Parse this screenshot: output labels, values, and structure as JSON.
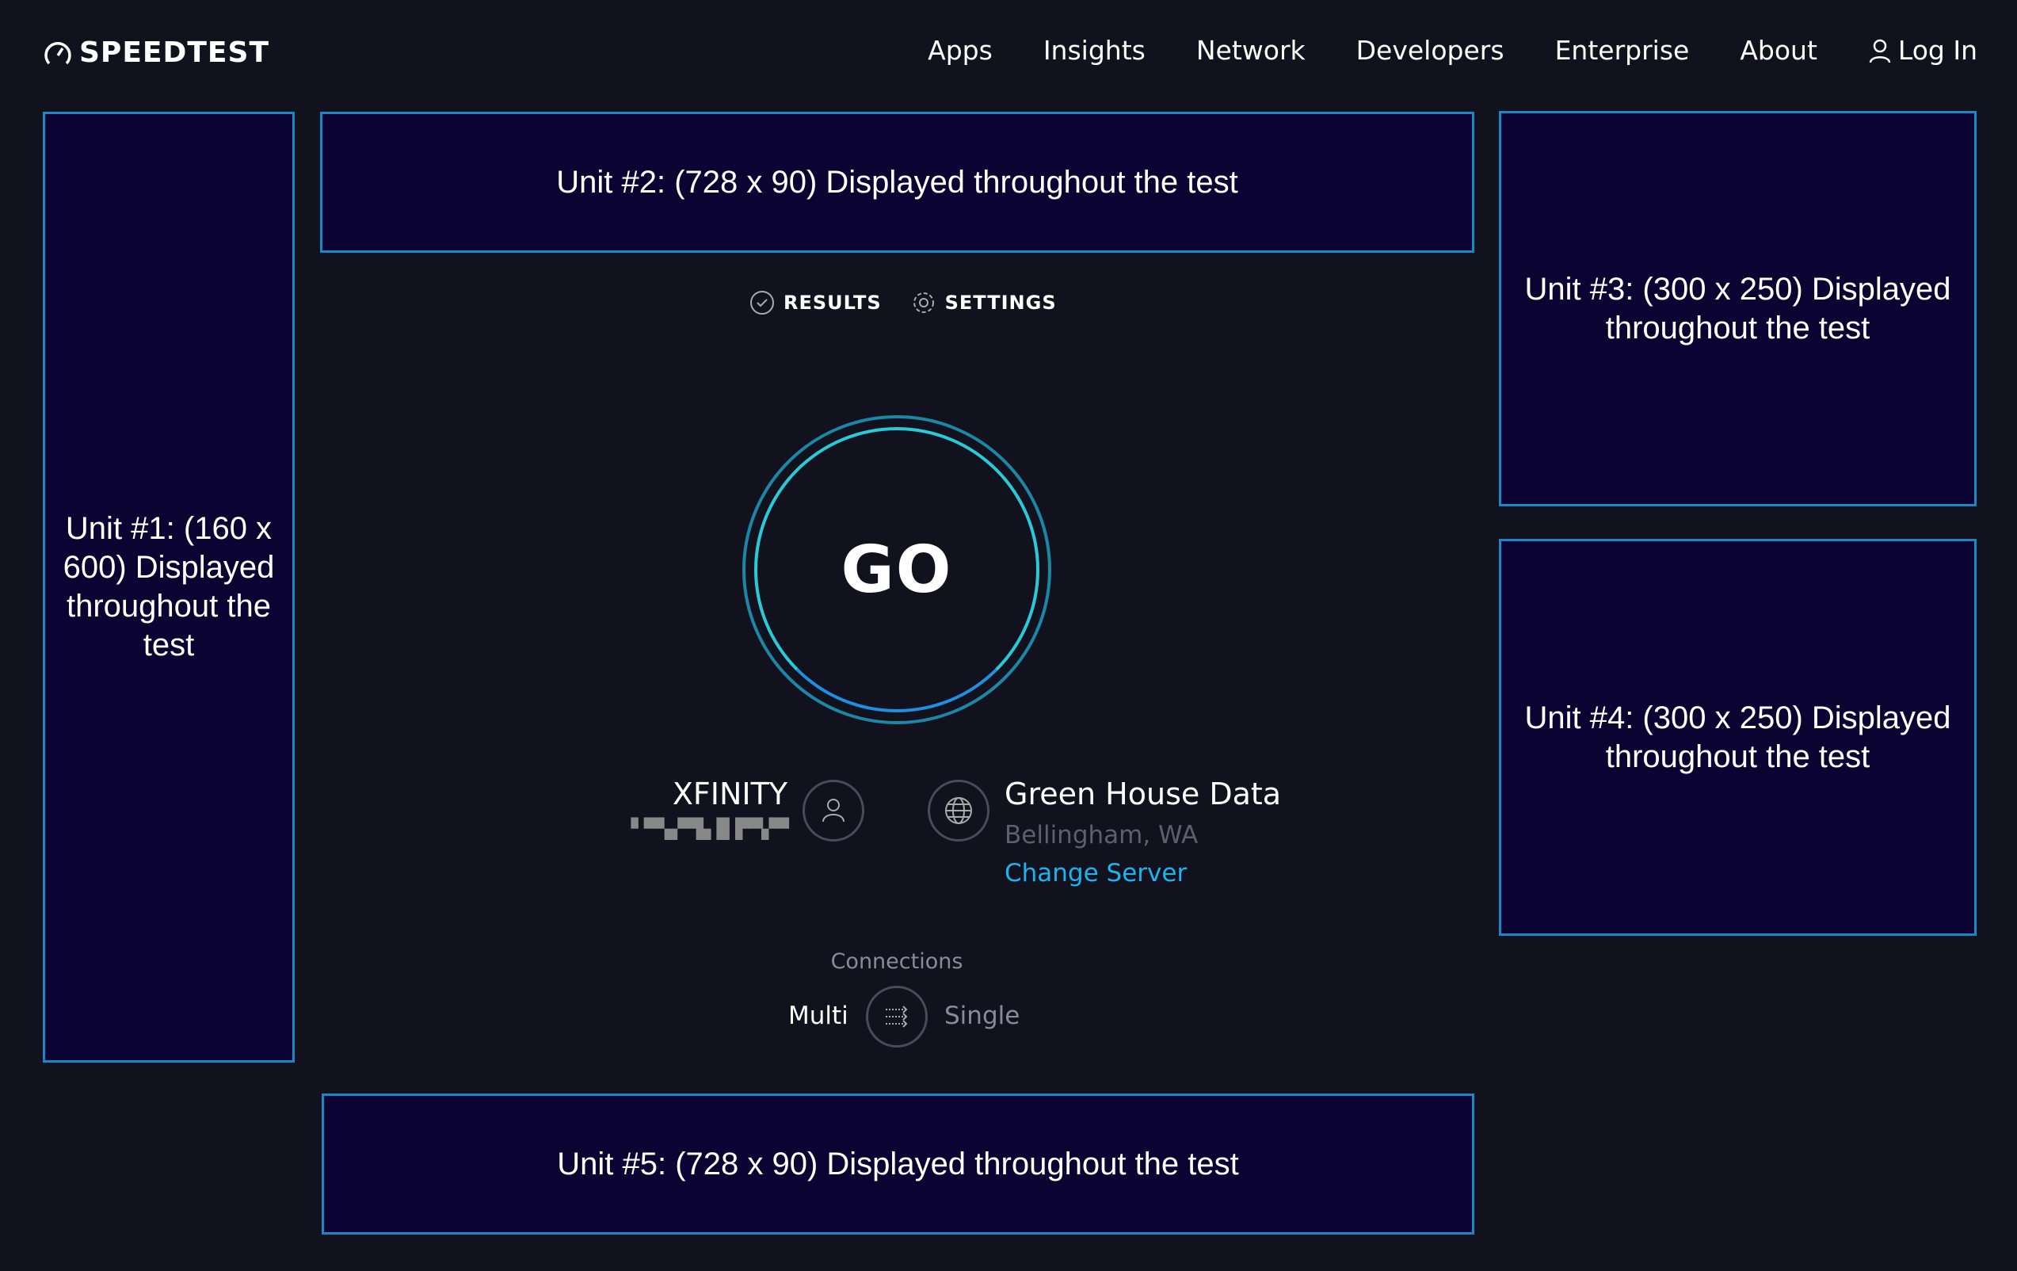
{
  "header": {
    "logo": "SPEEDTEST",
    "nav": [
      "Apps",
      "Insights",
      "Network",
      "Developers",
      "Enterprise",
      "About"
    ],
    "login": "Log In"
  },
  "ads": {
    "unit1": "Unit #1: (160 x 600) Displayed throughout the test",
    "unit2": "Unit #2: (728 x 90) Displayed throughout the test",
    "unit3": "Unit #3: (300 x 250) Displayed throughout the test",
    "unit4": "Unit #4: (300 x 250) Displayed throughout the test",
    "unit5": "Unit #5: (728 x 90) Displayed throughout the test"
  },
  "tabs": {
    "results": "RESULTS",
    "settings": "SETTINGS"
  },
  "go_label": "GO",
  "isp": {
    "name": "XFINITY",
    "ip": "▘▀▚▞▀▙▐▌▛▀▞▀"
  },
  "server": {
    "name": "Green House Data",
    "location": "Bellingham, WA",
    "change": "Change Server"
  },
  "connections": {
    "label": "Connections",
    "multi": "Multi",
    "single": "Single",
    "selected": "Multi"
  },
  "colors": {
    "accent": "#1cb4f0",
    "ad_border": "#1b87c4",
    "ad_bg": "#0b0331",
    "background": "#11121d"
  }
}
